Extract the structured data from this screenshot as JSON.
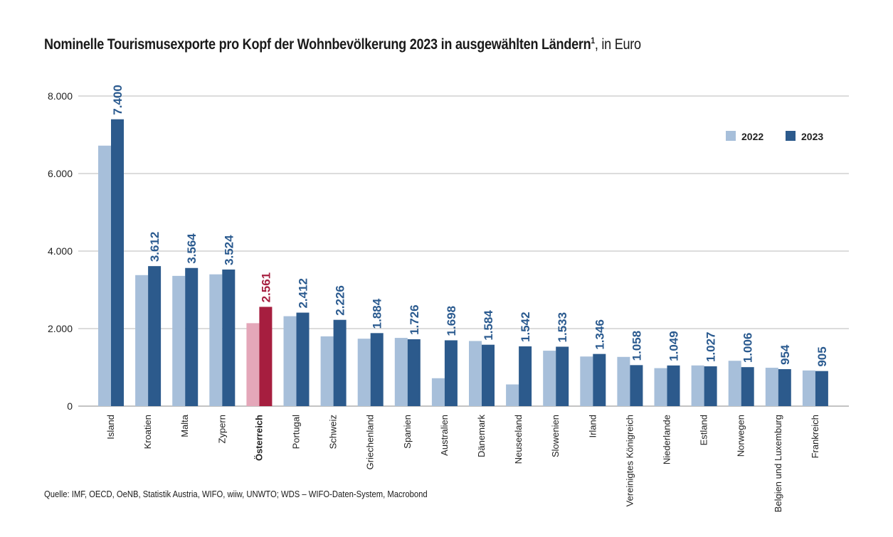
{
  "title": {
    "main": "Nominelle Tourismusexporte pro Kopf der Wohnbevölkerung 2023 in ausgewählten Ländern",
    "footnote_mark": "1",
    "unit": ", in Euro"
  },
  "source": "Quelle: IMF, OECD, OeNB, Statistik Austria, WIFO, wiiw, UNWTO; WDS – WIFO-Daten-System, Macrobond",
  "colors": {
    "s2022": "#a7bfda",
    "s2023": "#2c5a8c",
    "s2022_highlight": "#e4a7b9",
    "s2023_highlight": "#a61e3f",
    "grid": "#a0a0a0",
    "label": "#2a5a8f",
    "label_highlight": "#a61e3f"
  },
  "chart_data": {
    "type": "bar",
    "ylim": [
      0,
      8000
    ],
    "yticks": [
      0,
      2000,
      4000,
      6000,
      8000
    ],
    "ytick_labels": [
      "0",
      "2.000",
      "4.000",
      "6.000",
      "8.000"
    ],
    "grid": true,
    "legend_position": "top-right",
    "highlight_category": "Österreich",
    "categories": [
      "Island",
      "Kroatien",
      "Malta",
      "Zypern",
      "Österreich",
      "Portugal",
      "Schweiz",
      "Griechenland",
      "Spanien",
      "Australien",
      "Dänemark",
      "Neuseeland",
      "Slowenien",
      "Irland",
      "Vereinigtes Königreich",
      "Niederlande",
      "Estland",
      "Norwegen",
      "Belgien und Luxemburg",
      "Frankreich"
    ],
    "series": [
      {
        "name": "2022",
        "values": [
          6720,
          3380,
          3360,
          3400,
          2140,
          2320,
          1800,
          1740,
          1760,
          720,
          1680,
          560,
          1430,
          1280,
          1270,
          980,
          1050,
          1170,
          990,
          920
        ]
      },
      {
        "name": "2023",
        "values": [
          7400,
          3612,
          3564,
          3524,
          2561,
          2412,
          2226,
          1884,
          1726,
          1698,
          1584,
          1542,
          1533,
          1346,
          1058,
          1049,
          1027,
          1006,
          954,
          905
        ]
      }
    ],
    "value_labels": [
      "7.400",
      "3.612",
      "3.564",
      "3.524",
      "2.561",
      "2.412",
      "2.226",
      "1.884",
      "1.726",
      "1.698",
      "1.584",
      "1.542",
      "1.533",
      "1.346",
      "1.058",
      "1.049",
      "1.027",
      "1.006",
      "954",
      "905"
    ]
  }
}
